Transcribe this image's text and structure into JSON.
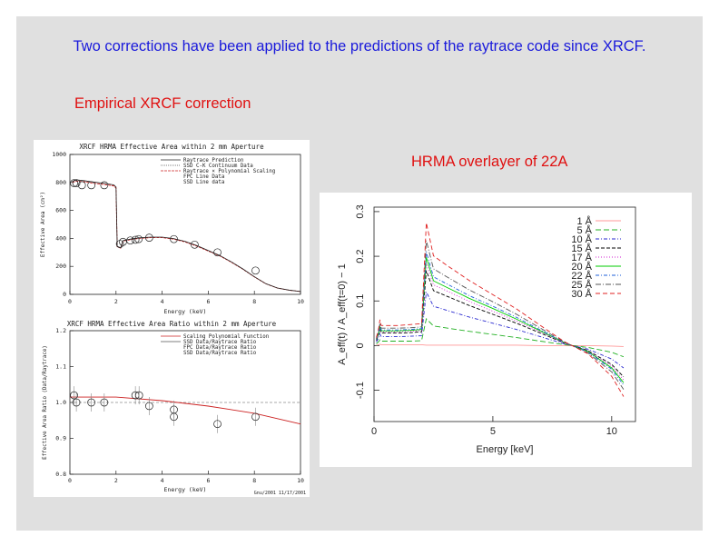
{
  "slide": {
    "heading": "Two corrections have been applied to the predictions of the raytrace code since XRCF.",
    "subheading_left": "Empirical XRCF correction",
    "subheading_right": "HRMA overlayer of 22A"
  },
  "colors": {
    "background": "#e0e0e0",
    "heading": "#1a1adb",
    "subheading": "#e01010"
  },
  "chart_data": [
    {
      "type": "line",
      "title": "XRCF HRMA Effective Area within 2 mm Aperture",
      "xlabel": "Energy (keV)",
      "ylabel": "Effective Area (cm²)",
      "xlim": [
        0,
        10
      ],
      "ylim": [
        0,
        1000
      ],
      "xticks": [
        "0",
        "2",
        "4",
        "6",
        "8",
        "10"
      ],
      "yticks": [
        "0",
        "200",
        "400",
        "600",
        "800",
        "1000"
      ],
      "legend": [
        "Raytrace Prediction",
        "SSD C-K Continuum Data",
        "Raytrace × Polynomial Scaling",
        "FPC Line Data",
        "SSD Line data"
      ],
      "series": [
        {
          "name": "Raytrace Prediction",
          "x": [
            0.1,
            0.3,
            0.6,
            1.0,
            1.5,
            1.9,
            2.0,
            2.05,
            2.2,
            2.3,
            2.6,
            3.0,
            3.5,
            4.0,
            4.5,
            5.0,
            5.5,
            6.0,
            6.5,
            7.0,
            7.5,
            8.0,
            8.5,
            9.0,
            9.5,
            10.0
          ],
          "y": [
            800,
            810,
            805,
            795,
            785,
            775,
            760,
            340,
            330,
            380,
            390,
            400,
            405,
            405,
            395,
            375,
            345,
            310,
            275,
            230,
            180,
            125,
            75,
            45,
            30,
            20
          ]
        },
        {
          "name": "FPC Line Data",
          "x": [
            0.18,
            0.28,
            0.52,
            0.93,
            1.49,
            2.17,
            2.3,
            2.62,
            2.84,
            2.98,
            3.44,
            4.51,
            5.41,
            6.4,
            8.05
          ],
          "y": [
            795,
            795,
            780,
            780,
            780,
            360,
            375,
            385,
            390,
            395,
            405,
            395,
            355,
            300,
            170
          ]
        }
      ]
    },
    {
      "type": "scatter",
      "title": "XRCF HRMA Effective Area Ratio within 2 mm Aperture",
      "xlabel": "Energy (keV)",
      "ylabel": "Effective Area Ratio (Data/Raytrace)",
      "xlim": [
        0,
        10
      ],
      "ylim": [
        0.8,
        1.2
      ],
      "xticks": [
        "0",
        "2",
        "4",
        "6",
        "8",
        "10"
      ],
      "yticks": [
        "0.8",
        "0.9",
        "1.0",
        "1.1",
        "1.2"
      ],
      "legend": [
        "Scaling Polynomial Function",
        "SSD Data/Raytrace Ratio",
        "FPC Data/Raytrace Ratio",
        "SSD Data/Raytrace Ratio"
      ],
      "footer": "Gnu/2001 11/17/2001",
      "series": [
        {
          "name": "Scaling Polynomial Function",
          "x": [
            0,
            2,
            4,
            6,
            8,
            10
          ],
          "y": [
            1.015,
            1.015,
            1.005,
            0.99,
            0.97,
            0.94
          ]
        },
        {
          "name": "FPC Data/Raytrace Ratio",
          "x": [
            0.18,
            0.28,
            0.93,
            1.49,
            2.84,
            3.0,
            3.44,
            4.51,
            4.51,
            6.4,
            8.05
          ],
          "y": [
            1.02,
            1.0,
            1.0,
            1.0,
            1.02,
            1.02,
            0.99,
            0.98,
            0.96,
            0.94,
            0.96
          ]
        }
      ]
    },
    {
      "type": "line",
      "xlabel": "Energy [keV]",
      "ylabel": "A_eff(t) / A_eff(t=0) − 1",
      "xlim": [
        0,
        11
      ],
      "ylim": [
        -0.17,
        0.31
      ],
      "xticks": [
        "0",
        "5",
        "10"
      ],
      "yticks": [
        "-0.1",
        "0",
        "0.1",
        "0.2",
        "0.3"
      ],
      "series": [
        {
          "name": "1 Å",
          "color": "#ff9999",
          "x": [
            0.1,
            0.2,
            0.25,
            0.3,
            0.5,
            1.0,
            1.5,
            2.0,
            2.2,
            2.5,
            3,
            4,
            5,
            6,
            7,
            8,
            9,
            10,
            10.5
          ],
          "y": [
            0.001,
            0.002,
            0.003,
            0.002,
            0.002,
            0.002,
            0.002,
            0.002,
            0.001,
            0.001,
            0.001,
            0.001,
            0.001,
            0.001,
            0.0,
            0.0,
            0.0,
            -0.001,
            -0.002
          ]
        },
        {
          "name": "5 Å",
          "color": "#22b022",
          "x": [
            0.1,
            0.2,
            0.25,
            0.3,
            0.5,
            1.0,
            1.5,
            2.0,
            2.2,
            2.5,
            3,
            4,
            5,
            6,
            7,
            8,
            9,
            10,
            10.5
          ],
          "y": [
            0.004,
            0.009,
            0.013,
            0.01,
            0.01,
            0.01,
            0.01,
            0.011,
            0.06,
            0.044,
            0.04,
            0.032,
            0.025,
            0.018,
            0.01,
            0.002,
            -0.004,
            -0.015,
            -0.025
          ]
        },
        {
          "name": "10 Å",
          "color": "#2a2ad0",
          "x": [
            0.1,
            0.2,
            0.25,
            0.3,
            0.5,
            1.0,
            1.5,
            2.0,
            2.2,
            2.5,
            3,
            4,
            5,
            6,
            7,
            8,
            9,
            10,
            10.5
          ],
          "y": [
            0.008,
            0.018,
            0.026,
            0.02,
            0.02,
            0.02,
            0.021,
            0.022,
            0.12,
            0.088,
            0.08,
            0.064,
            0.05,
            0.036,
            0.02,
            0.004,
            -0.008,
            -0.03,
            -0.05
          ]
        },
        {
          "name": "15 Å",
          "color": "#000000",
          "x": [
            0.1,
            0.2,
            0.25,
            0.3,
            0.5,
            1.0,
            1.5,
            2.0,
            2.2,
            2.5,
            3,
            4,
            5,
            6,
            7,
            8,
            9,
            10,
            10.5
          ],
          "y": [
            0.011,
            0.025,
            0.036,
            0.028,
            0.028,
            0.028,
            0.029,
            0.031,
            0.168,
            0.123,
            0.112,
            0.09,
            0.07,
            0.05,
            0.028,
            0.006,
            -0.011,
            -0.042,
            -0.07
          ]
        },
        {
          "name": "17 Å",
          "color": "#d21fd2",
          "x": [
            0.1,
            0.2,
            0.25,
            0.3,
            0.5,
            1.0,
            1.5,
            2.0,
            2.2,
            2.5,
            3,
            4,
            5,
            6,
            7,
            8,
            9,
            10,
            10.5
          ],
          "y": [
            0.012,
            0.027,
            0.04,
            0.031,
            0.031,
            0.031,
            0.032,
            0.034,
            0.186,
            0.136,
            0.124,
            0.099,
            0.077,
            0.055,
            0.031,
            0.006,
            -0.012,
            -0.046,
            -0.077
          ]
        },
        {
          "name": "20 Å",
          "color": "#00cc00",
          "x": [
            0.1,
            0.2,
            0.25,
            0.3,
            0.5,
            1.0,
            1.5,
            2.0,
            2.2,
            2.5,
            3,
            4,
            5,
            6,
            7,
            8,
            9,
            10,
            10.5
          ],
          "y": [
            0.013,
            0.029,
            0.042,
            0.033,
            0.033,
            0.033,
            0.034,
            0.036,
            0.198,
            0.145,
            0.132,
            0.106,
            0.083,
            0.059,
            0.033,
            0.007,
            -0.013,
            -0.05,
            -0.083
          ]
        },
        {
          "name": "22 Å",
          "color": "#1e5fd8",
          "x": [
            0.1,
            0.2,
            0.25,
            0.3,
            0.5,
            1.0,
            1.5,
            2.0,
            2.2,
            2.5,
            3,
            4,
            5,
            6,
            7,
            8,
            9,
            10,
            10.5
          ],
          "y": [
            0.014,
            0.031,
            0.045,
            0.035,
            0.035,
            0.035,
            0.036,
            0.038,
            0.21,
            0.154,
            0.14,
            0.112,
            0.088,
            0.063,
            0.035,
            0.007,
            -0.014,
            -0.053,
            -0.088
          ]
        },
        {
          "name": "25 Å",
          "color": "#555555",
          "x": [
            0.1,
            0.2,
            0.25,
            0.3,
            0.5,
            1.0,
            1.5,
            2.0,
            2.2,
            2.5,
            3,
            4,
            5,
            6,
            7,
            8,
            9,
            10,
            10.5
          ],
          "y": [
            0.015,
            0.034,
            0.05,
            0.039,
            0.039,
            0.039,
            0.04,
            0.042,
            0.235,
            0.172,
            0.156,
            0.125,
            0.098,
            0.07,
            0.039,
            0.008,
            -0.016,
            -0.059,
            -0.098
          ]
        },
        {
          "name": "30 Å",
          "color": "#e02020",
          "x": [
            0.1,
            0.2,
            0.25,
            0.3,
            0.5,
            1.0,
            1.5,
            2.0,
            2.2,
            2.5,
            3,
            4,
            5,
            6,
            7,
            8,
            9,
            10,
            10.5
          ],
          "y": [
            0.018,
            0.04,
            0.058,
            0.045,
            0.045,
            0.045,
            0.047,
            0.049,
            0.275,
            0.201,
            0.182,
            0.146,
            0.114,
            0.082,
            0.045,
            0.009,
            -0.018,
            -0.069,
            -0.114
          ]
        }
      ]
    }
  ]
}
